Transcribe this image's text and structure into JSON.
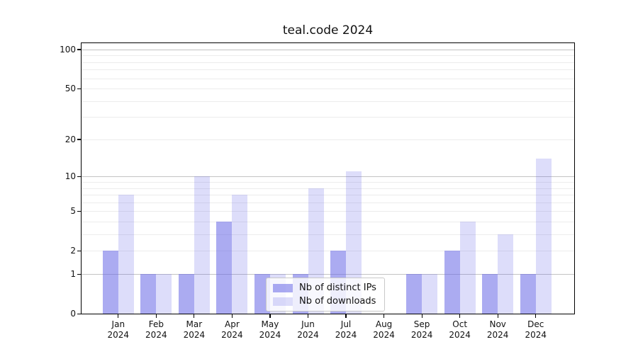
{
  "chart_data": {
    "type": "bar",
    "title": "teal.code 2024",
    "categories": [
      "Jan 2024",
      "Feb 2024",
      "Mar 2024",
      "Apr 2024",
      "May 2024",
      "Jun 2024",
      "Jul 2024",
      "Aug 2024",
      "Sep 2024",
      "Oct 2024",
      "Nov 2024",
      "Dec 2024"
    ],
    "series": [
      {
        "name": "Nb of distinct IPs",
        "values": [
          2,
          1,
          1,
          4,
          1,
          1,
          2,
          0,
          1,
          2,
          1,
          1
        ],
        "color": "rgba(102,102,230,0.55)",
        "solid_color": "#aaaaf5"
      },
      {
        "name": "Nb of downloads",
        "values": [
          7,
          1,
          10,
          7,
          1,
          8,
          11,
          0,
          1,
          4,
          3,
          14
        ],
        "color": "rgba(102,102,230,0.22)",
        "solid_color": "#d9d9f8"
      }
    ],
    "yticks": [
      0,
      1,
      2,
      5,
      10,
      20,
      50,
      100
    ],
    "major_gridlines": [
      1,
      10,
      100
    ],
    "minor_gridlines": [
      2,
      3,
      4,
      5,
      6,
      7,
      8,
      9,
      20,
      30,
      40,
      50,
      60,
      70,
      80,
      90
    ],
    "scale": "log1p",
    "ylim": [
      0,
      113
    ],
    "xlabel": "",
    "ylabel": "",
    "grid": true,
    "legend_position": "lower center",
    "axis_color": "#000000",
    "background_color": "#ffffff"
  }
}
